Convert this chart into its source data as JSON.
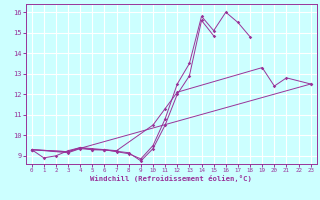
{
  "xlabel": "Windchill (Refroidissement éolien,°C)",
  "background_color": "#ccffff",
  "grid_color": "#ffffff",
  "line_color": "#993399",
  "xlim": [
    -0.5,
    23.5
  ],
  "ylim": [
    8.6,
    16.4
  ],
  "xticks": [
    0,
    1,
    2,
    3,
    4,
    5,
    6,
    7,
    8,
    9,
    10,
    11,
    12,
    13,
    14,
    15,
    16,
    17,
    18,
    19,
    20,
    21,
    22,
    23
  ],
  "yticks": [
    9,
    10,
    11,
    12,
    13,
    14,
    15,
    16
  ],
  "line1_x": [
    0,
    1,
    2,
    3,
    4,
    5,
    6,
    7,
    8,
    9,
    10,
    11,
    12,
    13,
    14,
    15,
    16,
    17,
    18
  ],
  "line1_y": [
    9.3,
    8.9,
    9.0,
    9.25,
    9.4,
    9.3,
    9.3,
    9.2,
    9.1,
    8.85,
    9.5,
    10.8,
    12.5,
    13.5,
    15.8,
    15.1,
    16.0,
    15.5,
    14.8
  ],
  "line2_x": [
    0,
    3,
    4,
    5,
    6,
    7,
    10,
    11,
    12,
    19,
    20,
    21,
    23
  ],
  "line2_y": [
    9.3,
    9.2,
    9.4,
    9.35,
    9.3,
    9.25,
    10.5,
    11.3,
    12.1,
    13.3,
    12.4,
    12.8,
    12.5
  ],
  "line3_x": [
    0,
    3,
    23
  ],
  "line3_y": [
    9.3,
    9.2,
    12.5
  ],
  "line4_x": [
    0,
    3,
    4,
    5,
    6,
    7,
    8,
    9,
    10,
    11,
    12,
    13,
    14,
    15
  ],
  "line4_y": [
    9.3,
    9.15,
    9.35,
    9.3,
    9.28,
    9.22,
    9.15,
    8.75,
    9.35,
    10.5,
    12.0,
    12.9,
    15.6,
    14.85
  ]
}
